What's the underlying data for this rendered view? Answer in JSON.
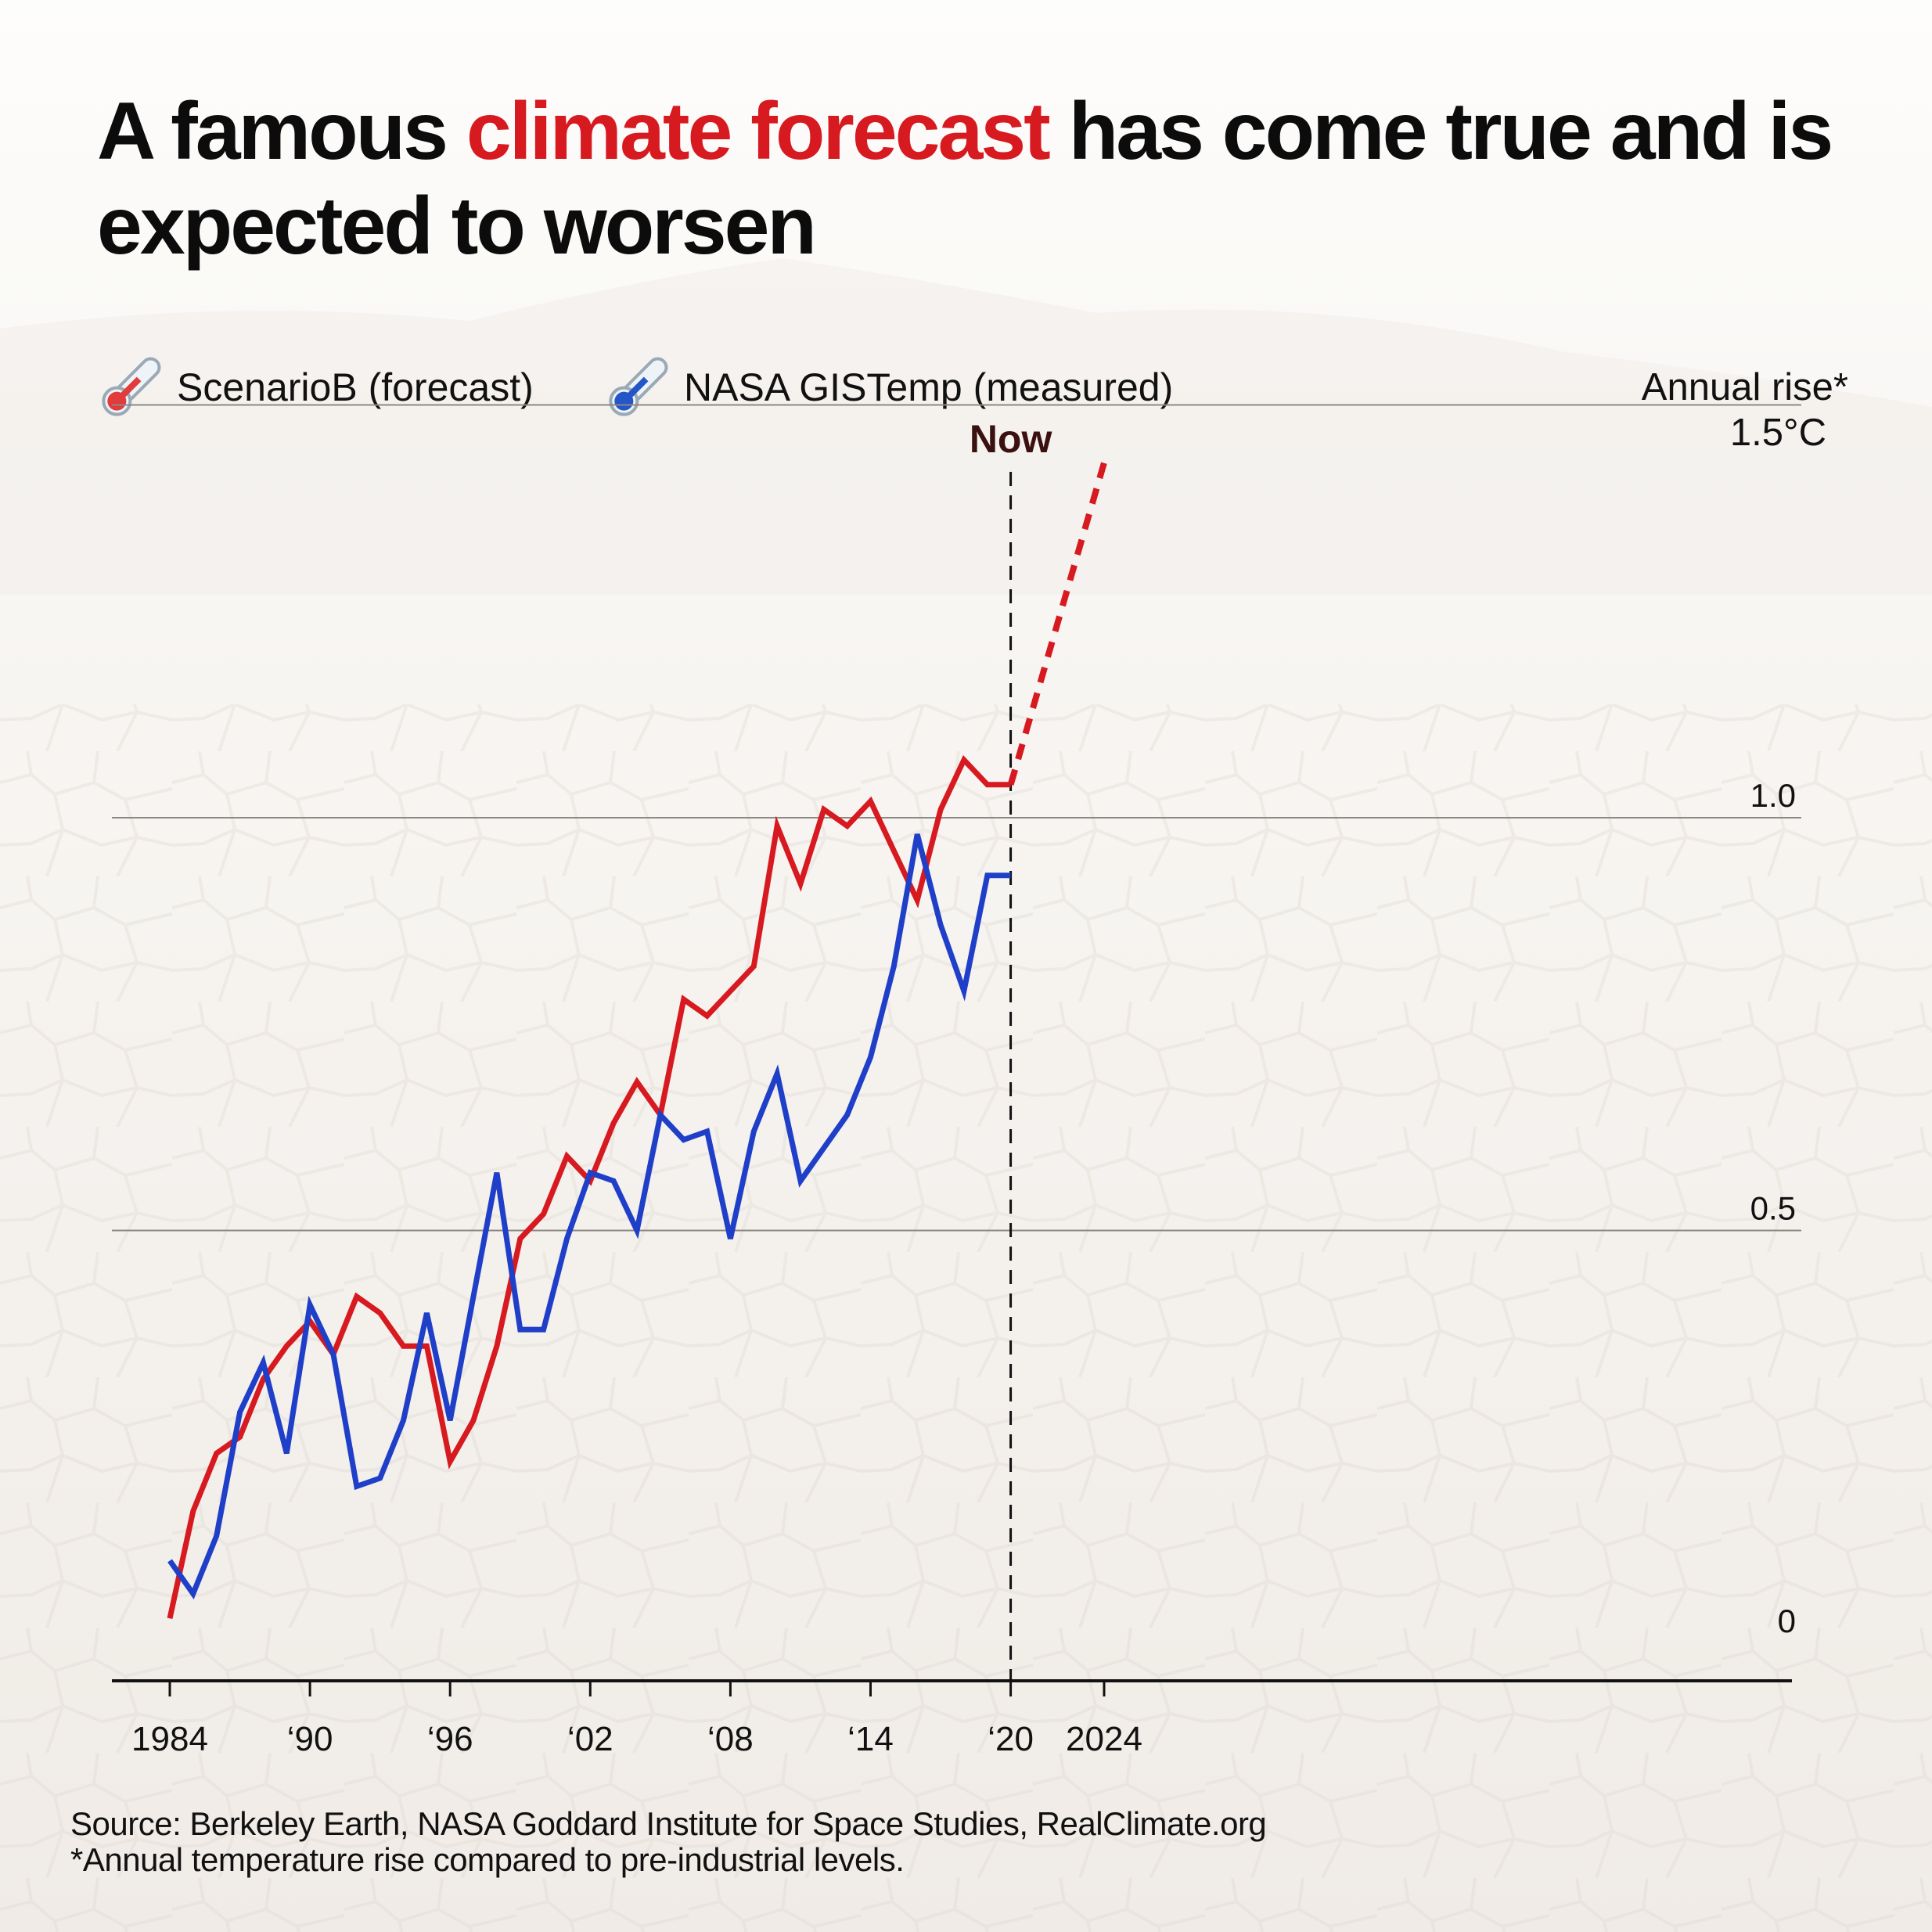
{
  "title": {
    "part1": "A famous ",
    "highlight": "climate forecast",
    "part2": " has come true and is expected to worsen",
    "highlight_color": "#d71920"
  },
  "legend": [
    {
      "label": "ScenarioB (forecast)",
      "icon": "thermometer-red-icon",
      "color": "#d71920"
    },
    {
      "label": "NASA GISTemp (measured)",
      "icon": "thermometer-blue-icon",
      "color": "#1f3fc8"
    }
  ],
  "unit_label": {
    "line1": "Annual rise*",
    "line2": "1.5°C"
  },
  "footer": {
    "source": "Source: Berkeley Earth, NASA Goddard Institute for Space Studies, RealClimate.org",
    "note": "*Annual temperature rise compared to pre-industrial levels."
  },
  "chart_data": {
    "type": "line",
    "xlim": [
      1984,
      2024
    ],
    "ylim": [
      0,
      1.5
    ],
    "grid": true,
    "x_ticks": [
      {
        "value": 1984,
        "label": "1984"
      },
      {
        "value": 1990,
        "label": "‘90"
      },
      {
        "value": 1996,
        "label": "‘96"
      },
      {
        "value": 2002,
        "label": "‘02"
      },
      {
        "value": 2008,
        "label": "‘08"
      },
      {
        "value": 2014,
        "label": "‘14"
      },
      {
        "value": 2020,
        "label": "‘20"
      },
      {
        "value": 2024,
        "label": "2024"
      }
    ],
    "y_ticks": [
      {
        "value": 0,
        "label": "0"
      },
      {
        "value": 0.5,
        "label": "0.5"
      },
      {
        "value": 1.0,
        "label": "1.0"
      }
    ],
    "now_marker": {
      "x": 2020,
      "label": "Now"
    },
    "series": [
      {
        "name": "ScenarioB (forecast)",
        "color": "#d71920",
        "x": [
          1984,
          1985,
          1986,
          1987,
          1988,
          1989,
          1990,
          1991,
          1992,
          1993,
          1994,
          1995,
          1996,
          1997,
          1998,
          1999,
          2000,
          2001,
          2002,
          2003,
          2004,
          2005,
          2006,
          2007,
          2008,
          2009,
          2010,
          2011,
          2012,
          2013,
          2014,
          2015,
          2016,
          2017,
          2018,
          2019,
          2020
        ],
        "y": [
          0.03,
          0.16,
          0.23,
          0.25,
          0.32,
          0.36,
          0.39,
          0.35,
          0.42,
          0.4,
          0.36,
          0.36,
          0.22,
          0.27,
          0.36,
          0.49,
          0.52,
          0.59,
          0.56,
          0.63,
          0.68,
          0.64,
          0.78,
          0.76,
          0.79,
          0.82,
          0.99,
          0.92,
          1.01,
          0.99,
          1.02,
          0.96,
          0.9,
          1.01,
          1.07,
          1.04,
          1.04
        ],
        "projection": {
          "x": [
            2020,
            2024
          ],
          "y": [
            1.04,
            1.43
          ]
        }
      },
      {
        "name": "NASA GISTemp (measured)",
        "color": "#1f3fc8",
        "x": [
          1984,
          1985,
          1986,
          1987,
          1988,
          1989,
          1990,
          1991,
          1992,
          1993,
          1994,
          1995,
          1996,
          1997,
          1998,
          1999,
          2000,
          2001,
          2002,
          2003,
          2004,
          2005,
          2006,
          2007,
          2008,
          2009,
          2010,
          2011,
          2012,
          2013,
          2014,
          2015,
          2016,
          2017,
          2018,
          2019,
          2020
        ],
        "y": [
          0.1,
          0.06,
          0.13,
          0.28,
          0.34,
          0.23,
          0.41,
          0.35,
          0.19,
          0.2,
          0.27,
          0.4,
          0.27,
          0.42,
          0.57,
          0.38,
          0.38,
          0.49,
          0.57,
          0.56,
          0.5,
          0.64,
          0.61,
          0.62,
          0.49,
          0.62,
          0.69,
          0.56,
          0.6,
          0.64,
          0.71,
          0.82,
          0.98,
          0.87,
          0.79,
          0.93,
          0.93
        ]
      }
    ]
  }
}
